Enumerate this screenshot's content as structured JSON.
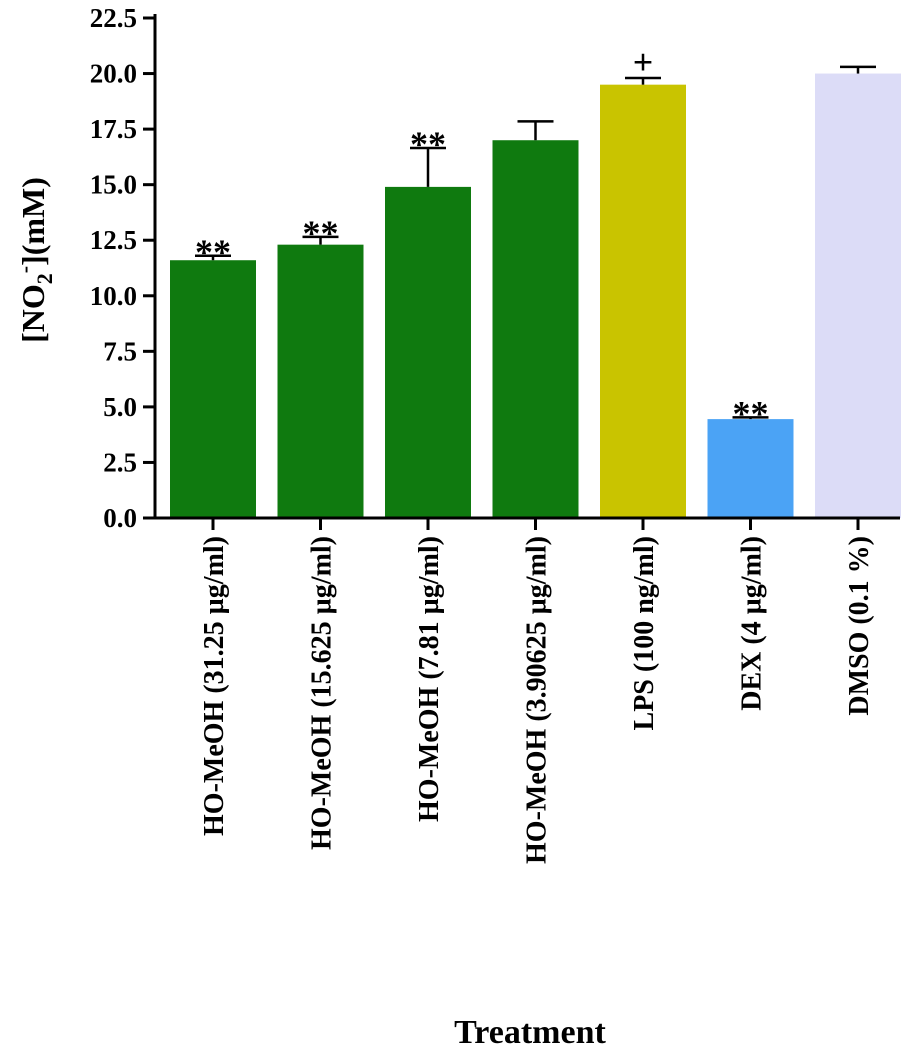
{
  "chart_data": {
    "type": "bar",
    "title": "",
    "xlabel": "Treatment",
    "ylabel": {
      "prefix": "[NO",
      "subscript": "2",
      "superscript": "-",
      "suffix": "](mM)"
    },
    "ylim": [
      0,
      22.5
    ],
    "yticks": [
      "0.0",
      "2.5",
      "5.0",
      "7.5",
      "10.0",
      "12.5",
      "15.0",
      "17.5",
      "20.0",
      "22.5"
    ],
    "grid": false,
    "legend": "none",
    "categories": [
      "HO-MeOH (31.25  µg/ml)",
      "HO-MeOH (15.625  µg/ml)",
      "HO-MeOH  (7.81  µg/ml)",
      "HO-MeOH (3.90625  µg/ml)",
      "LPS (100 ng/ml)",
      "DEX (4  µg/ml)",
      "DMSO (0.1 %)"
    ],
    "values": [
      11.6,
      12.3,
      14.9,
      17.0,
      19.5,
      4.45,
      20.0
    ],
    "errors": [
      0.2,
      0.35,
      1.75,
      0.85,
      0.3,
      0.08,
      0.3
    ],
    "significance": [
      "**",
      "**",
      "**",
      "",
      "+",
      "**",
      ""
    ],
    "colors": [
      "#0f7a0f",
      "#0f7a0f",
      "#0f7a0f",
      "#0f7a0f",
      "#c9c400",
      "#4ba3f5",
      "#dcdcf7"
    ]
  }
}
